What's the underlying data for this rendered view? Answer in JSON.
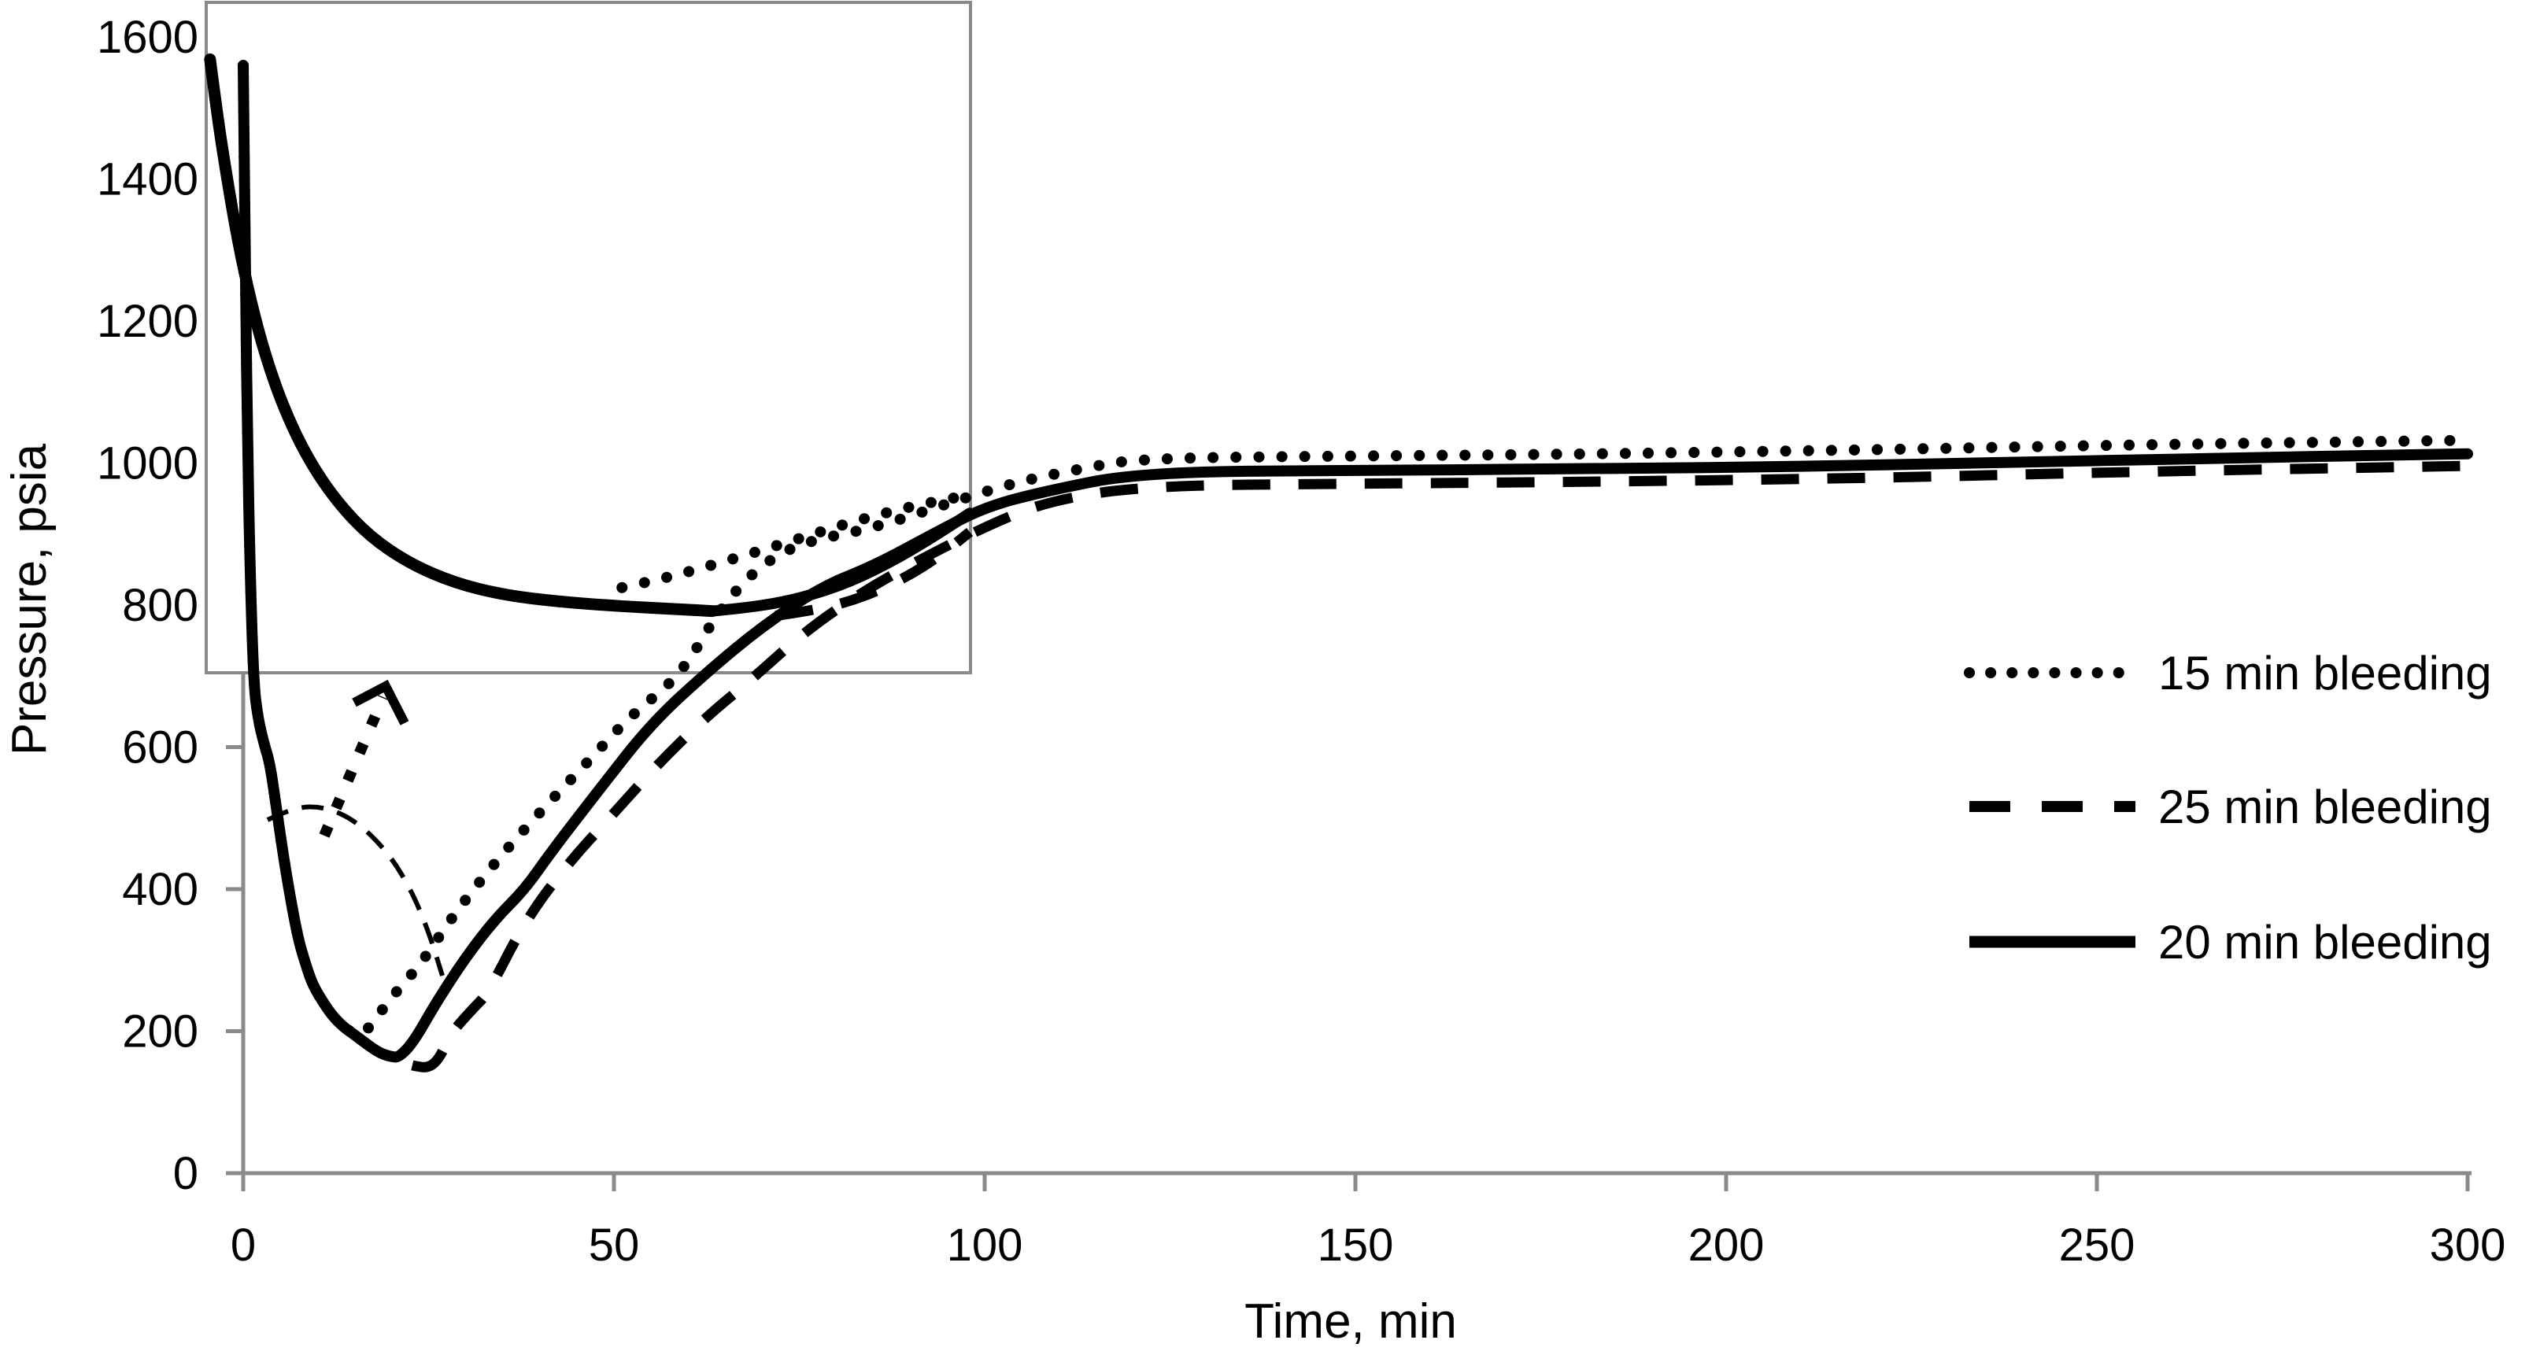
{
  "colors": {
    "background": "#ffffff",
    "axis": "#8a8a8a",
    "series": "#000000",
    "inset_border": "#8a8a8a"
  },
  "axes": {
    "x": {
      "title": "Time, min",
      "tick_labels": [
        "0",
        "50",
        "100",
        "150",
        "200",
        "250",
        "300"
      ],
      "range": [
        0,
        300
      ]
    },
    "y": {
      "title": "Pressure, psia",
      "tick_labels": [
        "0",
        "200",
        "400",
        "600",
        "800",
        "1000",
        "1200",
        "1400",
        "1600"
      ],
      "range": [
        0,
        1600
      ]
    }
  },
  "legend": {
    "items": [
      {
        "label": "15 min bleeding",
        "style": "dotted"
      },
      {
        "label": "25 min bleeding",
        "style": "dashed"
      },
      {
        "label": "20 min bleeding",
        "style": "solid"
      }
    ]
  },
  "chart_data": {
    "type": "line",
    "title": "",
    "xlabel": "Time, min",
    "ylabel": "Pressure, psia",
    "xlim": [
      0,
      300
    ],
    "ylim": [
      0,
      1600
    ],
    "x_ticks": [
      0,
      50,
      100,
      150,
      200,
      250,
      300
    ],
    "y_ticks": [
      0,
      200,
      400,
      600,
      800,
      1000,
      1200,
      1400,
      1600
    ],
    "grid": false,
    "legend_position": "right",
    "series": [
      {
        "name": "15 min bleeding",
        "line_style": "dotted",
        "points": [
          [
            0,
            1560
          ],
          [
            0.3,
            1250
          ],
          [
            0.6,
            1020
          ],
          [
            0.9,
            860
          ],
          [
            1.4,
            690
          ],
          [
            2,
            640
          ],
          [
            2.8,
            605
          ],
          [
            3.6,
            577
          ],
          [
            4.4,
            520
          ],
          [
            5.3,
            455
          ],
          [
            6.2,
            397
          ],
          [
            7.4,
            330
          ],
          [
            8.4,
            295
          ],
          [
            9.3,
            267
          ],
          [
            10.5,
            245
          ],
          [
            12,
            222
          ],
          [
            13.5,
            206
          ],
          [
            15,
            196
          ],
          [
            16,
            194
          ],
          [
            17.5,
            212
          ],
          [
            20,
            248
          ],
          [
            24,
            295
          ],
          [
            28,
            358
          ],
          [
            32,
            412
          ],
          [
            36,
            462
          ],
          [
            41.5,
            525
          ],
          [
            47,
            585
          ],
          [
            52,
            642
          ],
          [
            59,
            701
          ],
          [
            64,
            790
          ],
          [
            69,
            850
          ],
          [
            75,
            888
          ],
          [
            85,
            908
          ],
          [
            97,
            950
          ],
          [
            105,
            975
          ],
          [
            113,
            992
          ],
          [
            121,
            1007
          ],
          [
            150,
            1010
          ],
          [
            176,
            1012
          ],
          [
            216,
            1018
          ],
          [
            256,
            1026
          ],
          [
            300,
            1032
          ]
        ]
      },
      {
        "name": "25 min bleeding",
        "line_style": "dashed",
        "points": [
          [
            0,
            1560
          ],
          [
            0.3,
            1250
          ],
          [
            0.6,
            1020
          ],
          [
            0.9,
            860
          ],
          [
            1.4,
            690
          ],
          [
            2,
            640
          ],
          [
            2.8,
            605
          ],
          [
            3.6,
            577
          ],
          [
            4.4,
            520
          ],
          [
            5.3,
            455
          ],
          [
            6.2,
            397
          ],
          [
            7.4,
            330
          ],
          [
            8.4,
            295
          ],
          [
            9.3,
            267
          ],
          [
            10.5,
            245
          ],
          [
            12,
            222
          ],
          [
            13.5,
            206
          ],
          [
            15,
            195
          ],
          [
            16.5,
            183
          ],
          [
            18,
            172
          ],
          [
            19,
            167
          ],
          [
            20,
            164
          ],
          [
            21.5,
            156
          ],
          [
            23,
            151
          ],
          [
            25,
            148
          ],
          [
            26.5,
            162
          ],
          [
            28,
            197
          ],
          [
            31,
            232
          ],
          [
            33,
            253
          ],
          [
            38,
            355
          ],
          [
            43.7,
            435
          ],
          [
            50,
            507
          ],
          [
            56,
            577
          ],
          [
            62.5,
            643
          ],
          [
            68.3,
            693
          ],
          [
            76,
            765
          ],
          [
            84,
            822
          ],
          [
            92,
            868
          ],
          [
            100,
            910
          ],
          [
            108,
            945
          ],
          [
            121,
            968
          ],
          [
            150,
            971
          ],
          [
            176,
            973
          ],
          [
            216,
            978
          ],
          [
            256,
            988
          ],
          [
            300,
            996
          ]
        ]
      },
      {
        "name": "20 min bleeding",
        "line_style": "solid",
        "points": [
          [
            0,
            1560
          ],
          [
            0.3,
            1250
          ],
          [
            0.6,
            1020
          ],
          [
            0.9,
            860
          ],
          [
            1.4,
            690
          ],
          [
            2,
            640
          ],
          [
            2.8,
            605
          ],
          [
            3.6,
            577
          ],
          [
            4.4,
            520
          ],
          [
            5.3,
            455
          ],
          [
            6.2,
            397
          ],
          [
            7.4,
            330
          ],
          [
            8.4,
            295
          ],
          [
            9.3,
            267
          ],
          [
            10.5,
            245
          ],
          [
            12,
            222
          ],
          [
            13.5,
            206
          ],
          [
            15,
            195
          ],
          [
            16.5,
            183
          ],
          [
            18,
            172
          ],
          [
            19,
            167
          ],
          [
            20,
            164
          ],
          [
            21,
            163
          ],
          [
            23,
            185
          ],
          [
            26,
            240
          ],
          [
            30,
            304
          ],
          [
            34,
            358
          ],
          [
            38,
            400
          ],
          [
            41.5,
            452
          ],
          [
            48,
            540
          ],
          [
            55,
            633
          ],
          [
            62.7,
            707
          ],
          [
            70,
            770
          ],
          [
            78,
            826
          ],
          [
            85,
            855
          ],
          [
            93,
            900
          ],
          [
            100,
            938
          ],
          [
            108,
            960
          ],
          [
            121,
            987
          ],
          [
            150,
            990
          ],
          [
            176,
            991
          ],
          [
            216,
            996
          ],
          [
            256,
            1005
          ],
          [
            300,
            1013
          ]
        ]
      }
    ]
  },
  "inset": {
    "purpose": "zoomed detail of the pressure minimum region",
    "border_color": "#8a8a8a",
    "curves": {
      "descent": [
        [
          0.005,
          0.085
        ],
        [
          0.015,
          0.173
        ],
        [
          0.027,
          0.261
        ],
        [
          0.041,
          0.354
        ],
        [
          0.058,
          0.445
        ],
        [
          0.078,
          0.53
        ],
        [
          0.103,
          0.61
        ],
        [
          0.134,
          0.683
        ],
        [
          0.171,
          0.745
        ],
        [
          0.214,
          0.797
        ],
        [
          0.266,
          0.837
        ],
        [
          0.325,
          0.866
        ],
        [
          0.389,
          0.884
        ],
        [
          0.461,
          0.894
        ],
        [
          0.544,
          0.901
        ],
        [
          0.616,
          0.905
        ],
        [
          0.662,
          0.908
        ]
      ],
      "solid_branch": [
        [
          0.662,
          0.908
        ],
        [
          0.719,
          0.902
        ],
        [
          0.781,
          0.888
        ],
        [
          0.842,
          0.865
        ],
        [
          0.904,
          0.83
        ],
        [
          0.956,
          0.794
        ],
        [
          0.999,
          0.762
        ]
      ],
      "dotted_branch": [
        [
          0.544,
          0.873
        ],
        [
          0.6,
          0.859
        ],
        [
          0.657,
          0.841
        ],
        [
          0.719,
          0.82
        ],
        [
          0.781,
          0.798
        ],
        [
          0.842,
          0.776
        ],
        [
          0.904,
          0.757
        ],
        [
          0.956,
          0.744
        ],
        [
          0.999,
          0.735
        ]
      ],
      "dashed_branch": [
        [
          0.745,
          0.915
        ],
        [
          0.801,
          0.906
        ],
        [
          0.858,
          0.888
        ],
        [
          0.914,
          0.859
        ],
        [
          0.961,
          0.825
        ],
        [
          0.999,
          0.79
        ]
      ]
    }
  },
  "annotations": {
    "arc_points": [
      [
        340,
        1042
      ],
      [
        373,
        1026
      ],
      [
        412,
        1025
      ],
      [
        452,
        1043
      ],
      [
        492,
        1082
      ],
      [
        522,
        1130
      ],
      [
        545,
        1185
      ],
      [
        562,
        1240
      ]
    ],
    "arrow_line": [
      [
        412,
        1062
      ],
      [
        487,
        886
      ]
    ],
    "arrow_head": [
      [
        450,
        893
      ],
      [
        490,
        872
      ],
      [
        514,
        919
      ]
    ]
  }
}
